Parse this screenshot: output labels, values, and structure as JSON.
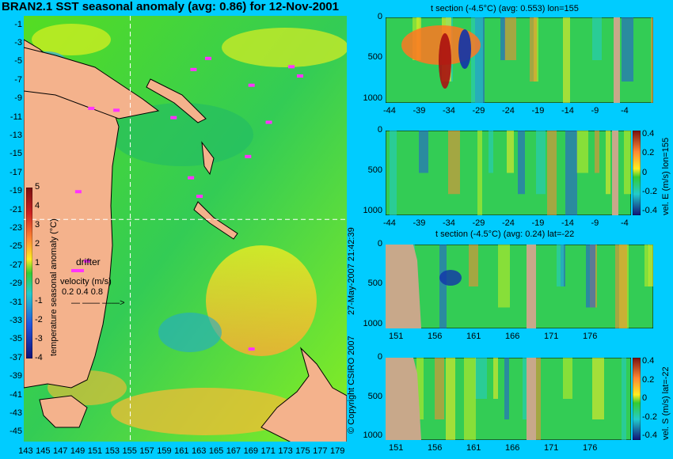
{
  "map": {
    "title": "BRAN2.1 SST seasonal anomaly (avg: 0.86) for 12-Nov-2001",
    "lat_ticks": [
      -1,
      -3,
      -5,
      -7,
      -9,
      -11,
      -13,
      -15,
      -17,
      -19,
      -21,
      -23,
      -25,
      -27,
      -29,
      -31,
      -33,
      -35,
      -37,
      -39,
      -41,
      -43,
      -45
    ],
    "lon_ticks": [
      143,
      145,
      147,
      149,
      151,
      153,
      155,
      157,
      159,
      161,
      163,
      165,
      167,
      169,
      171,
      173,
      175,
      177,
      179
    ],
    "crosshair": {
      "lon": 155,
      "lat": -22
    },
    "colorbar": {
      "label": "temperature seasonal anomaly (°C)",
      "ticks": [
        5,
        4,
        3,
        2,
        1,
        0,
        -1,
        -2,
        -3,
        -4
      ],
      "range": [
        -4,
        5
      ]
    },
    "legend": {
      "drifter": "drifter",
      "velocity_label": "velocity (m/s)",
      "velocity_values": "0.2 0.4 0.8"
    }
  },
  "panels": [
    {
      "title": "t section (-4.5°C) (avg: 0.553) lon=155",
      "x_ticks": [
        "-44",
        "-39",
        "-34",
        "-29",
        "-24",
        "-19",
        "-14",
        "-9",
        "-4"
      ],
      "y_ticks": [
        "0",
        "500",
        "1000"
      ],
      "x_range": [
        -45,
        0
      ],
      "y_range": [
        0,
        1050
      ]
    },
    {
      "title": "",
      "x_ticks": [
        "-44",
        "-39",
        "-34",
        "-29",
        "-24",
        "-19",
        "-14",
        "-9",
        "-4"
      ],
      "y_ticks": [
        "0",
        "500",
        "1000"
      ],
      "colorbar_label": "vel. E (m/s) lon=155",
      "colorbar_ticks": [
        "0.4",
        "0.2",
        "0",
        "-0.2",
        "-0.4"
      ]
    },
    {
      "title": "t section (-4.5°C) (avg: 0.24) lat=-22",
      "x_ticks": [
        "151",
        "156",
        "161",
        "166",
        "171",
        "176"
      ],
      "y_ticks": [
        "0",
        "500",
        "1000"
      ],
      "x_range": [
        150,
        180
      ],
      "y_range": [
        0,
        1050
      ]
    },
    {
      "title": "",
      "x_ticks": [
        "151",
        "156",
        "161",
        "166",
        "171",
        "176"
      ],
      "y_ticks": [
        "0",
        "500",
        "1000"
      ],
      "colorbar_label": "vel. S (m/s) lat=-22",
      "colorbar_ticks": [
        "0.4",
        "0.2",
        "0",
        "-0.2",
        "-0.4"
      ]
    }
  ],
  "watermark": "© Copyright CSIRO 2007",
  "timestamp": "27-May-2007 21:42:39",
  "colors": {
    "background": "#00ccff",
    "land": "#c8a88a",
    "anomaly_base": "#33cc33",
    "magenta": "#ff33ff"
  }
}
